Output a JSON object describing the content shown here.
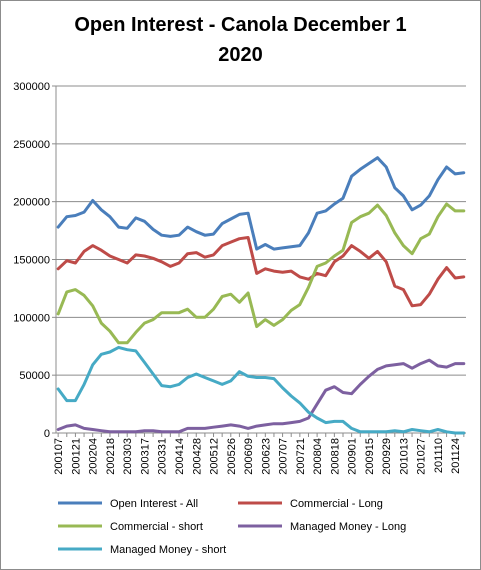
{
  "chart_data": {
    "type": "line",
    "title": "Open Interest - Canola December 1 2020",
    "title_lines": [
      "Open Interest - Canola December 1",
      "2020"
    ],
    "xlabel": "",
    "ylabel": "",
    "ylim": [
      0,
      300000
    ],
    "yticks": [
      "0",
      "50000",
      "100000",
      "150000",
      "200000",
      "250000",
      "300000"
    ],
    "grid": true,
    "legend_position": "bottom",
    "categories": [
      "200107",
      "200114",
      "200121",
      "200128",
      "200204",
      "200211",
      "200218",
      "200225",
      "200303",
      "200310",
      "200317",
      "200324",
      "200331",
      "200407",
      "200414",
      "200421",
      "200428",
      "200505",
      "200512",
      "200519",
      "200526",
      "200602",
      "200609",
      "200616",
      "200623",
      "200630",
      "200707",
      "200714",
      "200721",
      "200728",
      "200804",
      "200811",
      "200818",
      "200825",
      "200901",
      "200908",
      "200915",
      "200922",
      "200929",
      "201006",
      "201013",
      "201020",
      "201027",
      "201103",
      "201110",
      "201117",
      "201124",
      "201201"
    ],
    "tick_labels": [
      "200107",
      "200121",
      "200204",
      "200218",
      "200303",
      "200317",
      "200331",
      "200414",
      "200428",
      "200512",
      "200526",
      "200609",
      "200623",
      "200707",
      "200721",
      "200804",
      "200818",
      "200901",
      "200915",
      "200929",
      "201013",
      "201027",
      "201110",
      "201124"
    ],
    "series": [
      {
        "name": "Open Interest - All",
        "color": "#4a7ebb",
        "values": [
          178000,
          187000,
          188000,
          191000,
          201000,
          193000,
          187000,
          178000,
          177000,
          186000,
          183000,
          176000,
          171000,
          170000,
          171000,
          178000,
          174000,
          171000,
          172000,
          181000,
          185000,
          189000,
          190000,
          159000,
          163000,
          159000,
          160000,
          161000,
          162000,
          173000,
          190000,
          192000,
          198000,
          203000,
          222000,
          228000,
          233000,
          238000,
          230000,
          212000,
          205000,
          193000,
          197000,
          205000,
          219000,
          230000,
          224000,
          225000
        ]
      },
      {
        "name": "Commercial - Long",
        "color": "#be4b48",
        "values": [
          142000,
          149000,
          147000,
          157000,
          162000,
          158000,
          153000,
          150000,
          147000,
          154000,
          153000,
          151000,
          148000,
          144000,
          147000,
          155000,
          156000,
          152000,
          154000,
          162000,
          165000,
          168000,
          169000,
          138000,
          142000,
          140000,
          139000,
          140000,
          135000,
          133000,
          138000,
          136000,
          148000,
          153000,
          162000,
          157000,
          151000,
          157000,
          148000,
          127000,
          124000,
          110000,
          111000,
          120000,
          133000,
          143000,
          134000,
          135000
        ]
      },
      {
        "name": "Commercial - short",
        "color": "#98b954",
        "values": [
          103000,
          122000,
          124000,
          119000,
          110000,
          95000,
          88000,
          78000,
          78000,
          87000,
          95000,
          98000,
          104000,
          104000,
          104000,
          107000,
          100000,
          100000,
          107000,
          118000,
          120000,
          113000,
          121000,
          92000,
          98000,
          93000,
          98000,
          106000,
          111000,
          126000,
          144000,
          147000,
          153000,
          158000,
          182000,
          187000,
          190000,
          197000,
          188000,
          173000,
          162000,
          155000,
          168000,
          172000,
          187000,
          198000,
          192000,
          192000
        ]
      },
      {
        "name": "Managed Money - Long",
        "color": "#7d60a0",
        "values": [
          3000,
          6000,
          7000,
          4000,
          3000,
          2000,
          1000,
          1000,
          1000,
          1000,
          2000,
          2000,
          1000,
          1000,
          1000,
          4000,
          4000,
          4000,
          5000,
          6000,
          7000,
          6000,
          4000,
          6000,
          7000,
          8000,
          8000,
          9000,
          10000,
          13000,
          25000,
          37000,
          40000,
          35000,
          34000,
          42000,
          49000,
          55000,
          58000,
          59000,
          60000,
          56000,
          60000,
          63000,
          58000,
          57000,
          60000,
          60000
        ]
      },
      {
        "name": "Managed Money - short",
        "color": "#46aac5",
        "values": [
          38000,
          28000,
          28000,
          42000,
          59000,
          68000,
          70000,
          74000,
          72000,
          71000,
          61000,
          51000,
          41000,
          40000,
          42000,
          48000,
          51000,
          48000,
          45000,
          42000,
          45000,
          53000,
          49000,
          48000,
          48000,
          47000,
          39000,
          32000,
          26000,
          18000,
          13000,
          9000,
          10000,
          10000,
          4000,
          1000,
          1000,
          1000,
          1000,
          2000,
          1000,
          3000,
          2000,
          1000,
          3000,
          1000,
          0,
          0
        ]
      }
    ]
  }
}
